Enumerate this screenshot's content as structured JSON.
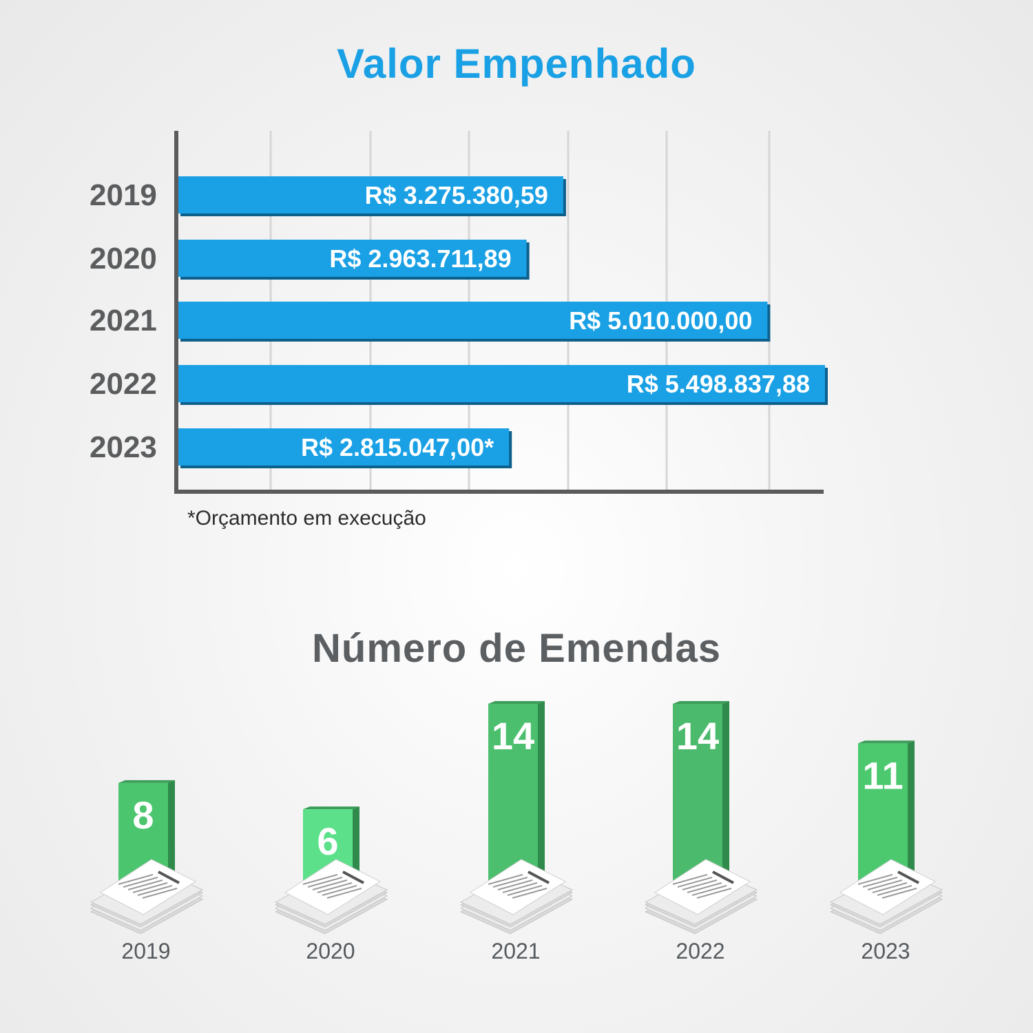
{
  "chart_data": [
    {
      "type": "bar",
      "orientation": "horizontal",
      "title": "Valor Empenhado",
      "categories": [
        "2019",
        "2020",
        "2021",
        "2022",
        "2023"
      ],
      "values": [
        3275380.59,
        2963711.89,
        5010000.0,
        5498837.88,
        2815047.0
      ],
      "value_labels": [
        "R$ 3.275.380,59",
        "R$ 2.963.711,89",
        "R$ 5.010.000,00",
        "R$ 5.498.837,88",
        "R$ 2.815.047,00*"
      ],
      "footnote": "*Orçamento em execução",
      "grid": true,
      "bar_color": "#1aa0e4",
      "bar_shadow_color": "#0d5f8c"
    },
    {
      "type": "bar",
      "orientation": "vertical",
      "title": "Número de Emendas",
      "categories": [
        "2019",
        "2020",
        "2021",
        "2022",
        "2023"
      ],
      "values": [
        8,
        6,
        14,
        14,
        11
      ],
      "value_labels": [
        "8",
        "6",
        "14",
        "14",
        "11"
      ],
      "grid": false,
      "bar_colors": [
        "#4cc56f",
        "#5ce08a",
        "#4cbf6e",
        "#4bba6c",
        "#4cc86f"
      ],
      "bar_side_color": "#2f8a4b",
      "icon": "paper-stack-icon"
    }
  ]
}
